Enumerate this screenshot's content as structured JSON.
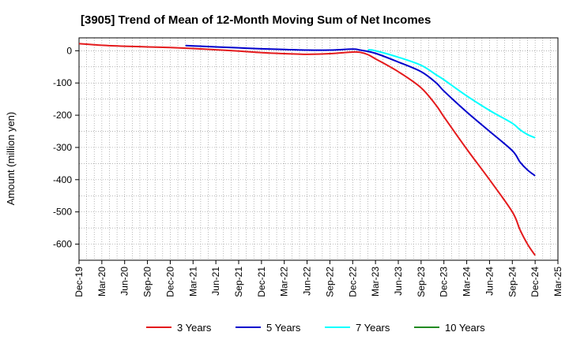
{
  "chart_data": {
    "type": "line",
    "title": "[3905]  Trend of Mean of 12-Month Moving Sum of Net Incomes",
    "xlabel": "",
    "ylabel": "Amount (million yen)",
    "ylim": [
      -650,
      40
    ],
    "yticks": [
      0,
      -100,
      -200,
      -300,
      -400,
      -500,
      -600
    ],
    "ytick_labels": [
      "0",
      "-100",
      "-200",
      "-300",
      "-400",
      "-500",
      "-600"
    ],
    "xlim": [
      "Dec-19",
      "Mar-25"
    ],
    "xticks": [
      "Dec-19",
      "Mar-20",
      "Jun-20",
      "Sep-20",
      "Dec-20",
      "Mar-21",
      "Jun-21",
      "Sep-21",
      "Dec-21",
      "Mar-22",
      "Jun-22",
      "Sep-22",
      "Dec-22",
      "Mar-23",
      "Jun-23",
      "Sep-23",
      "Dec-23",
      "Mar-24",
      "Jun-24",
      "Sep-24",
      "Dec-24",
      "Mar-25"
    ],
    "grid": true,
    "legend_position": "bottom",
    "series": [
      {
        "name": "3 Years",
        "color": "#e41a1c",
        "points": [
          [
            "Dec-19",
            22
          ],
          [
            "Mar-20",
            17
          ],
          [
            "Jun-20",
            14
          ],
          [
            "Sep-20",
            12
          ],
          [
            "Dec-20",
            10
          ],
          [
            "Mar-21",
            7
          ],
          [
            "Jun-21",
            3
          ],
          [
            "Sep-21",
            -1
          ],
          [
            "Dec-21",
            -6
          ],
          [
            "Mar-22",
            -9
          ],
          [
            "Jun-22",
            -11
          ],
          [
            "Sep-22",
            -9
          ],
          [
            "Dec-22",
            -4
          ],
          [
            "Jan-23",
            -5
          ],
          [
            "Feb-23",
            -12
          ],
          [
            "Mar-23",
            -25
          ],
          [
            "Jun-23",
            -65
          ],
          [
            "Sep-23",
            -115
          ],
          [
            "Nov-23",
            -170
          ],
          [
            "Dec-23",
            -205
          ],
          [
            "Mar-24",
            -305
          ],
          [
            "Jun-24",
            -400
          ],
          [
            "Sep-24",
            -500
          ],
          [
            "Oct-24",
            -555
          ],
          [
            "Nov-24",
            -600
          ],
          [
            "Dec-24",
            -635
          ]
        ]
      },
      {
        "name": "5 Years",
        "color": "#0000cc",
        "points": [
          [
            "Feb-21",
            16
          ],
          [
            "Mar-21",
            15
          ],
          [
            "Jun-21",
            12
          ],
          [
            "Sep-21",
            9
          ],
          [
            "Dec-21",
            6
          ],
          [
            "Mar-22",
            4
          ],
          [
            "Jun-22",
            2
          ],
          [
            "Sep-22",
            2
          ],
          [
            "Dec-22",
            5
          ],
          [
            "Jan-23",
            2
          ],
          [
            "Mar-23",
            -8
          ],
          [
            "Jun-23",
            -35
          ],
          [
            "Sep-23",
            -65
          ],
          [
            "Nov-23",
            -100
          ],
          [
            "Dec-23",
            -125
          ],
          [
            "Mar-24",
            -190
          ],
          [
            "Jun-24",
            -250
          ],
          [
            "Sep-24",
            -310
          ],
          [
            "Oct-24",
            -345
          ],
          [
            "Nov-24",
            -370
          ],
          [
            "Dec-24",
            -388
          ]
        ]
      },
      {
        "name": "7 Years",
        "color": "#00ffff",
        "points": [
          [
            "Feb-23",
            3
          ],
          [
            "Mar-23",
            0
          ],
          [
            "Jun-23",
            -20
          ],
          [
            "Sep-23",
            -45
          ],
          [
            "Nov-23",
            -75
          ],
          [
            "Dec-23",
            -90
          ],
          [
            "Mar-24",
            -140
          ],
          [
            "Jun-24",
            -185
          ],
          [
            "Sep-24",
            -225
          ],
          [
            "Oct-24",
            -245
          ],
          [
            "Nov-24",
            -260
          ],
          [
            "Dec-24",
            -270
          ]
        ]
      },
      {
        "name": "10 Years",
        "color": "#228b22",
        "points": []
      }
    ]
  }
}
